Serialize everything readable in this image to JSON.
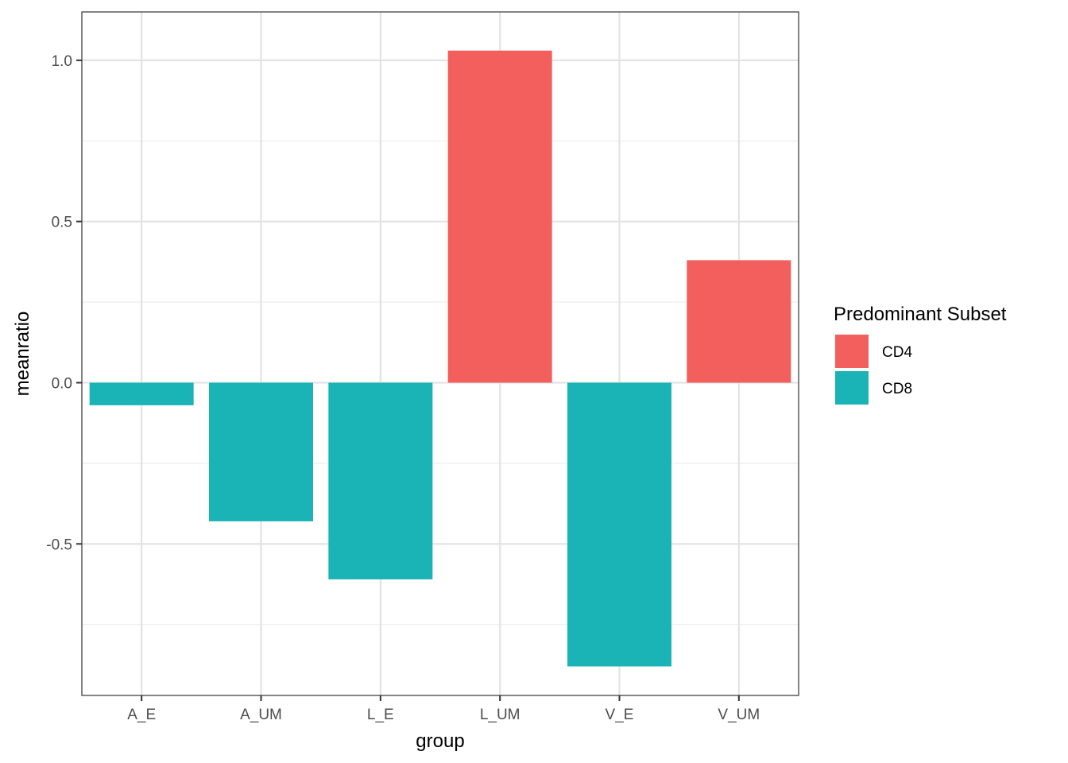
{
  "chart_data": {
    "type": "bar",
    "categories": [
      "A_E",
      "A_UM",
      "L_E",
      "L_UM",
      "V_E",
      "V_UM"
    ],
    "values": [
      -0.07,
      -0.43,
      -0.61,
      1.03,
      -0.88,
      0.38
    ],
    "subset": [
      "CD8",
      "CD8",
      "CD8",
      "CD4",
      "CD8",
      "CD4"
    ],
    "xlabel": "group",
    "ylabel": "meanratio",
    "ylim": [
      -0.97,
      1.15
    ],
    "yticks": [
      -0.5,
      0.0,
      0.5,
      1.0
    ],
    "ytick_labels": [
      "-0.5",
      "0.0",
      "0.5",
      "1.0"
    ],
    "grid": true,
    "legend": {
      "title": "Predominant Subset",
      "position": "right",
      "entries": [
        {
          "label": "CD4",
          "color": "#F35F5C"
        },
        {
          "label": "CD8",
          "color": "#1AB4B7"
        }
      ]
    },
    "colors": {
      "CD4": "#F35F5C",
      "CD8": "#1AB4B7"
    }
  }
}
